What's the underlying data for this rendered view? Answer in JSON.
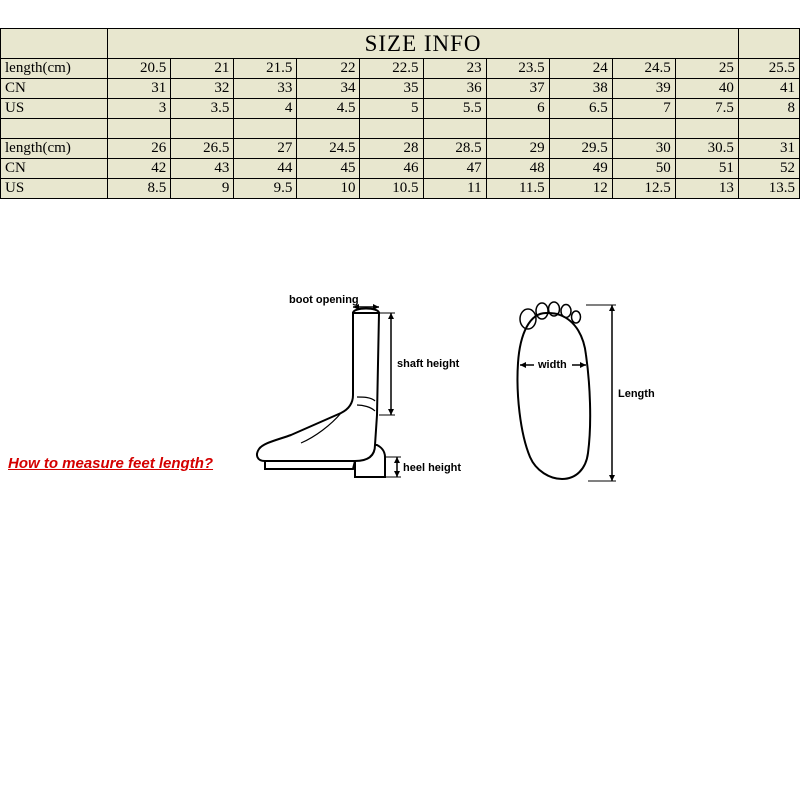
{
  "table": {
    "title": "SIZE INFO",
    "row_bg": "#e8e7cf",
    "border_color": "#000000",
    "block1": {
      "headers": [
        "length(cm)",
        "CN",
        "US"
      ],
      "rows": [
        [
          "20.5",
          "21",
          "21.5",
          "22",
          "22.5",
          "23",
          "23.5",
          "24",
          "24.5",
          "25",
          "25.5"
        ],
        [
          "31",
          "32",
          "33",
          "34",
          "35",
          "36",
          "37",
          "38",
          "39",
          "40",
          "41"
        ],
        [
          "3",
          "3.5",
          "4",
          "4.5",
          "5",
          "5.5",
          "6",
          "6.5",
          "7",
          "7.5",
          "8"
        ]
      ]
    },
    "block2": {
      "headers": [
        "length(cm)",
        "CN",
        "US"
      ],
      "rows": [
        [
          "26",
          "26.5",
          "27",
          "24.5",
          "28",
          "28.5",
          "29",
          "29.5",
          "30",
          "30.5",
          "31"
        ],
        [
          "42",
          "43",
          "44",
          "45",
          "46",
          "47",
          "48",
          "49",
          "50",
          "51",
          "52"
        ],
        [
          "8.5",
          "9",
          "9.5",
          "10",
          "10.5",
          "11",
          "11.5",
          "12",
          "12.5",
          "13",
          "13.5"
        ]
      ]
    }
  },
  "diagram": {
    "question": "How to measure feet length?",
    "question_color": "#d40000",
    "boot_labels": {
      "opening": "boot opening",
      "shaft": "shaft height",
      "heel": "heel height"
    },
    "foot_labels": {
      "width": "width",
      "length": "Length"
    }
  }
}
